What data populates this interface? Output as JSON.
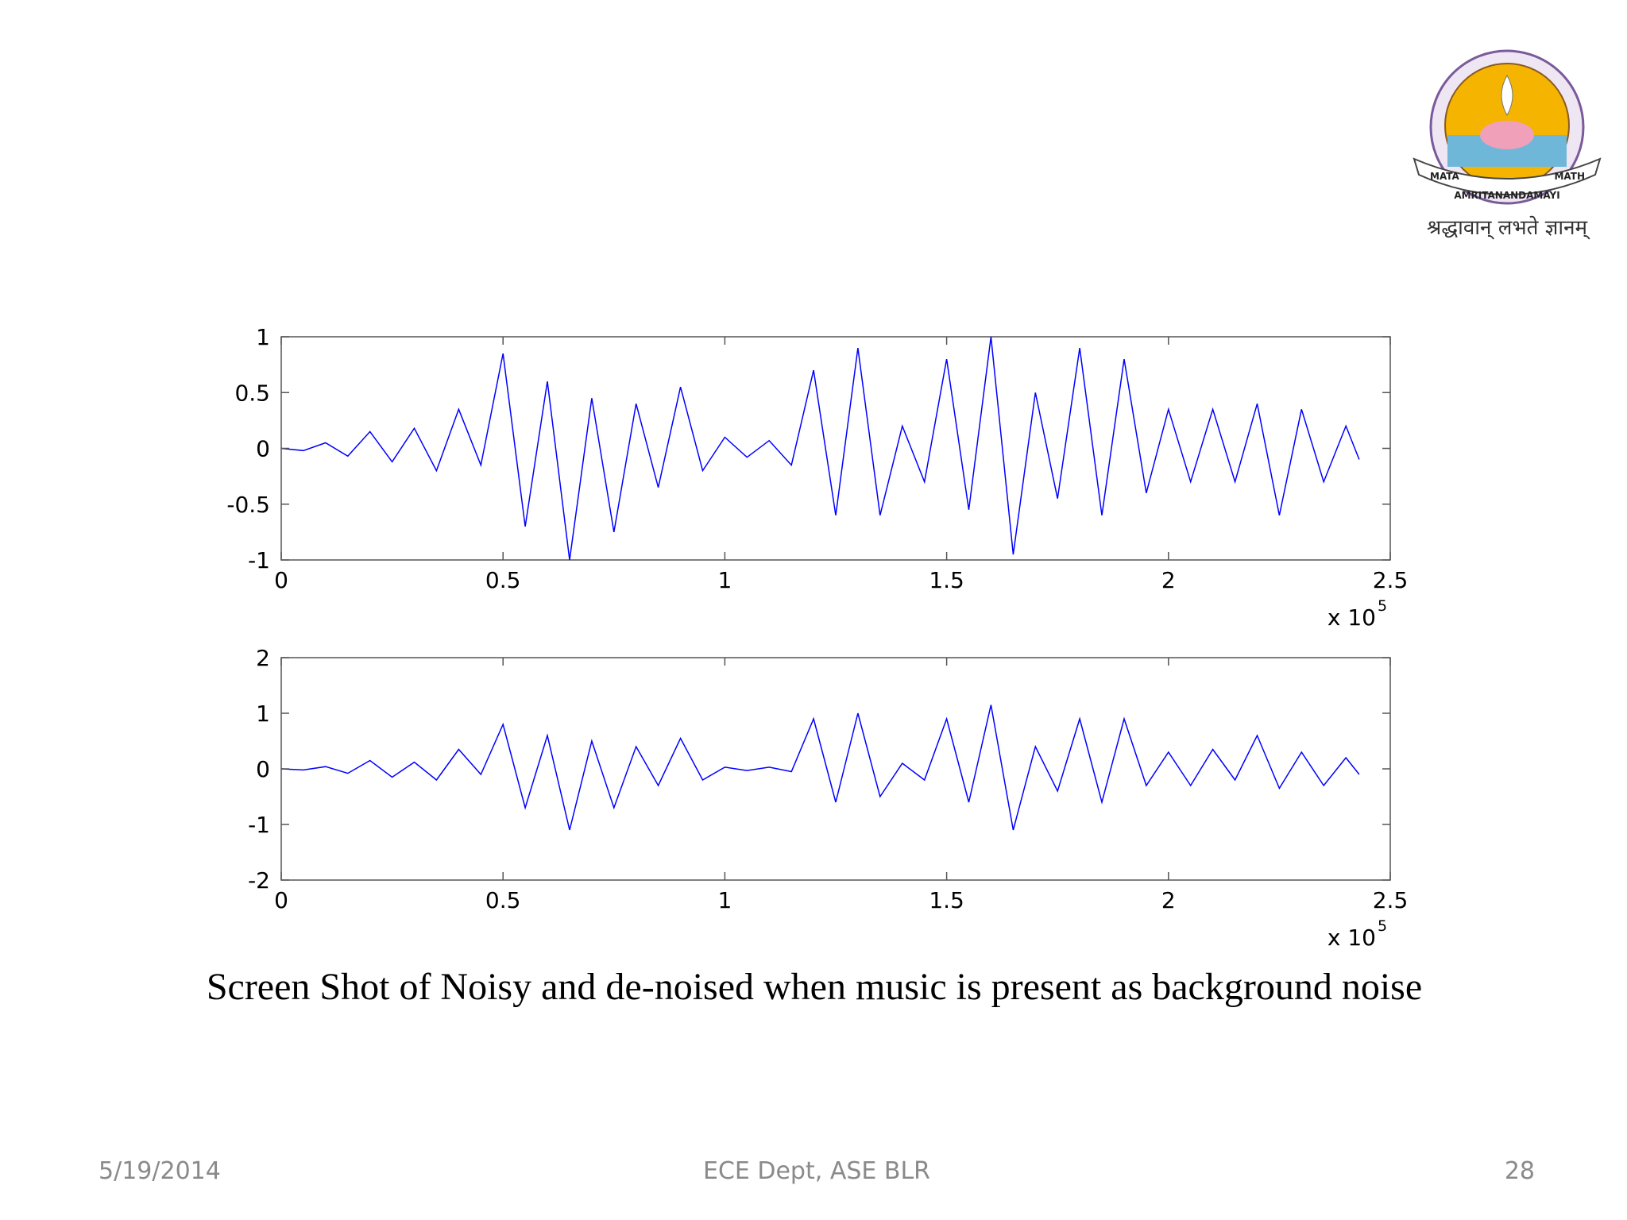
{
  "chart_data": [
    {
      "type": "line",
      "color": "#0000ff",
      "x": [
        0,
        0.05,
        0.1,
        0.15,
        0.2,
        0.25,
        0.3,
        0.35,
        0.4,
        0.45,
        0.5,
        0.55,
        0.6,
        0.65,
        0.7,
        0.75,
        0.8,
        0.85,
        0.9,
        0.95,
        1,
        1.05,
        1.1,
        1.15,
        1.2,
        1.25,
        1.3,
        1.35,
        1.4,
        1.45,
        1.5,
        1.55,
        1.6,
        1.65,
        1.7,
        1.75,
        1.8,
        1.85,
        1.9,
        1.95,
        2,
        2.05,
        2.1,
        2.15,
        2.2,
        2.25,
        2.3,
        2.35,
        2.4,
        2.43
      ],
      "values": [
        0,
        -0.02,
        0.05,
        -0.07,
        0.15,
        -0.12,
        0.18,
        -0.2,
        0.35,
        -0.15,
        0.85,
        -0.7,
        0.6,
        -1,
        0.45,
        -0.75,
        0.4,
        -0.35,
        0.55,
        -0.2,
        0.1,
        -0.08,
        0.07,
        -0.15,
        0.7,
        -0.6,
        0.9,
        -0.6,
        0.2,
        -0.3,
        0.8,
        -0.55,
        1,
        -0.95,
        0.5,
        -0.45,
        0.9,
        -0.6,
        0.8,
        -0.4,
        0.35,
        -0.3,
        0.35,
        -0.3,
        0.4,
        -0.6,
        0.35,
        -0.3,
        0.2,
        -0.1
      ],
      "xlim": [
        0,
        2.5
      ],
      "xticks": [
        0,
        0.5,
        1,
        1.5,
        2,
        2.5
      ],
      "ylim": [
        -1,
        1
      ],
      "yticks": [
        1,
        0.5,
        0,
        -0.5,
        -1
      ],
      "x_multiplier": "x 10",
      "x_exponent": "5"
    },
    {
      "type": "line",
      "color": "#0000ff",
      "x": [
        0,
        0.05,
        0.1,
        0.15,
        0.2,
        0.25,
        0.3,
        0.35,
        0.4,
        0.45,
        0.5,
        0.55,
        0.6,
        0.65,
        0.7,
        0.75,
        0.8,
        0.85,
        0.9,
        0.95,
        1,
        1.05,
        1.1,
        1.15,
        1.2,
        1.25,
        1.3,
        1.35,
        1.4,
        1.45,
        1.5,
        1.55,
        1.6,
        1.65,
        1.7,
        1.75,
        1.8,
        1.85,
        1.9,
        1.95,
        2,
        2.05,
        2.1,
        2.15,
        2.2,
        2.25,
        2.3,
        2.35,
        2.4,
        2.43
      ],
      "values": [
        0,
        -0.02,
        0.04,
        -0.08,
        0.15,
        -0.15,
        0.12,
        -0.2,
        0.35,
        -0.1,
        0.8,
        -0.7,
        0.6,
        -1.1,
        0.5,
        -0.7,
        0.4,
        -0.3,
        0.55,
        -0.2,
        0.03,
        -0.03,
        0.03,
        -0.05,
        0.9,
        -0.6,
        1,
        -0.5,
        0.1,
        -0.2,
        0.9,
        -0.6,
        1.15,
        -1.1,
        0.4,
        -0.4,
        0.9,
        -0.6,
        0.9,
        -0.3,
        0.3,
        -0.3,
        0.35,
        -0.2,
        0.6,
        -0.35,
        0.3,
        -0.3,
        0.2,
        -0.1
      ],
      "xlim": [
        0,
        2.5
      ],
      "xticks": [
        0,
        0.5,
        1,
        1.5,
        2,
        2.5
      ],
      "ylim": [
        -2,
        2
      ],
      "yticks": [
        2,
        1,
        0,
        -1,
        -2
      ],
      "x_multiplier": "x 10",
      "x_exponent": "5"
    }
  ],
  "caption": "Screen Shot of Noisy and de-noised when music is present as background noise",
  "footer": {
    "date": "5/19/2014",
    "dept": "ECE Dept, ASE BLR",
    "page": "28"
  },
  "logo": {
    "band_left": "MATA",
    "band_mid": "AMRITANANDAMAYI",
    "band_right": "MATH",
    "motto": "श्रद्धावान् लभते ज्ञानम्"
  }
}
